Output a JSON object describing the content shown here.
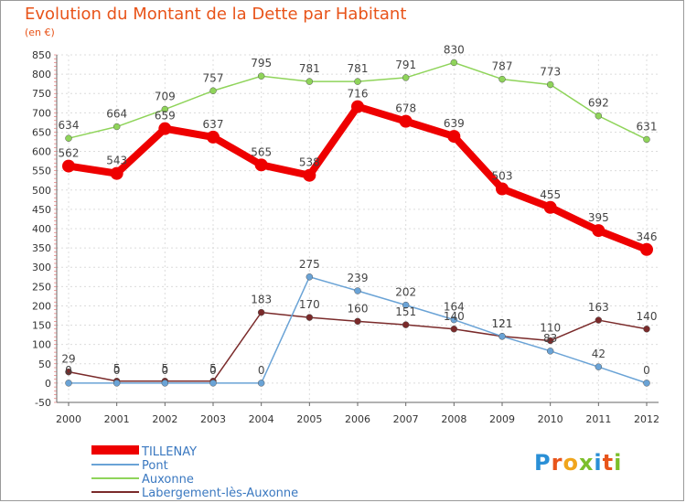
{
  "title": "Evolution du Montant de la Dette par Habitant",
  "unit": "(en €)",
  "logo": {
    "letters": [
      "P",
      "r",
      "o",
      "x",
      "i",
      "t",
      "i"
    ],
    "colors": [
      "#2a8fd6",
      "#e8541a",
      "#f0a51c",
      "#7cbf2a",
      "#2a8fd6",
      "#e8541a",
      "#7cbf2a"
    ]
  },
  "chart_data": {
    "type": "line",
    "x": [
      "2000",
      "2001",
      "2002",
      "2003",
      "2004",
      "2005",
      "2006",
      "2007",
      "2008",
      "2009",
      "2010",
      "2011",
      "2012"
    ],
    "ylim": [
      -50,
      850
    ],
    "yticks": [
      -50,
      0,
      50,
      100,
      150,
      200,
      250,
      300,
      350,
      400,
      450,
      500,
      550,
      600,
      650,
      700,
      750,
      800,
      850
    ],
    "grid": true,
    "legend_position": "bottom-left",
    "series": [
      {
        "name": "TILLENAY",
        "color": "#ee0000",
        "values": [
          562,
          543,
          659,
          637,
          565,
          538,
          716,
          678,
          639,
          503,
          455,
          395,
          346
        ],
        "labels": [
          "562",
          "543",
          "659",
          "637",
          "565",
          "538",
          "716",
          "678",
          "639",
          "503",
          "455",
          "395",
          "346"
        ]
      },
      {
        "name": "Pont",
        "color": "#6aa3d6",
        "values": [
          0,
          0,
          0,
          0,
          0,
          275,
          239,
          202,
          164,
          121,
          83,
          42,
          0
        ],
        "labels": [
          "0",
          "0",
          "0",
          "0",
          "0",
          "275",
          "239",
          "202",
          "164",
          "121",
          "83",
          "42",
          "0"
        ]
      },
      {
        "name": "Auxonne",
        "color": "#8fd45a",
        "values": [
          634,
          664,
          709,
          757,
          795,
          781,
          781,
          791,
          830,
          787,
          773,
          692,
          631
        ],
        "labels": [
          "634",
          "664",
          "709",
          "757",
          "795",
          "781",
          "781",
          "791",
          "830",
          "787",
          "773",
          "692",
          "631"
        ]
      },
      {
        "name": "Labergement-lès-Auxonne",
        "color": "#7a2a2a",
        "values": [
          29,
          5,
          5,
          5,
          183,
          170,
          160,
          151,
          140,
          121,
          110,
          163,
          140
        ],
        "labels": [
          "29",
          "5",
          "5",
          "5",
          "183",
          "170",
          "160",
          "151",
          "140",
          "121",
          "110",
          "163",
          "140"
        ]
      }
    ]
  }
}
